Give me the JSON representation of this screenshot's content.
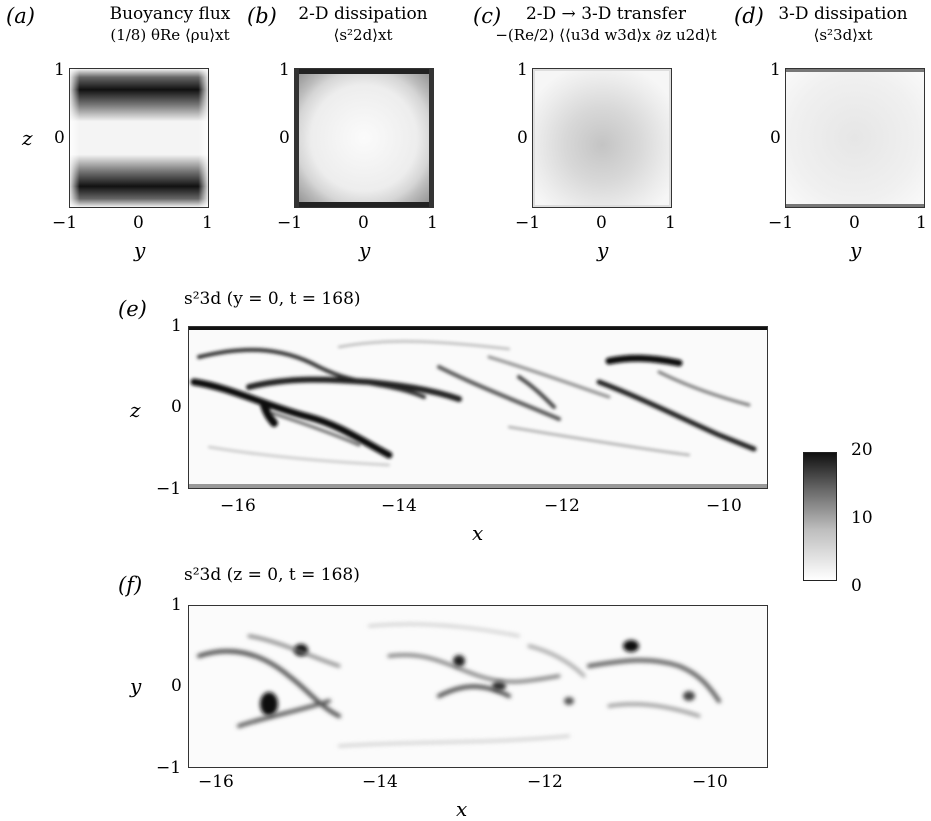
{
  "panels": [
    {
      "tag": "(a)",
      "title_line1": "Buoyancy flux",
      "title_line2": "(1/8) θRe ⟨ρu⟩xt",
      "ylabel": "z",
      "xlabel": "y",
      "xticks": [
        "−1",
        "0",
        "1"
      ],
      "yticks": [
        "1",
        "0"
      ]
    },
    {
      "tag": "(b)",
      "title_line1": "2-D dissipation",
      "title_line2": "⟨s²2d⟩xt",
      "xlabel": "y",
      "xticks": [
        "−1",
        "0",
        "1"
      ],
      "yticks": [
        "1",
        "0"
      ]
    },
    {
      "tag": "(c)",
      "title_line1": "2-D → 3-D transfer",
      "title_line2": "−(Re/2) ⟨⟨u3d w3d⟩x ∂z u2d⟩t",
      "xlabel": "y",
      "xticks": [
        "−1",
        "0",
        "1"
      ],
      "yticks": [
        "1",
        "0"
      ]
    },
    {
      "tag": "(d)",
      "title_line1": "3-D dissipation",
      "title_line2": "⟨s²3d⟩xt",
      "xlabel": "y",
      "xticks": [
        "−1",
        "0",
        "1"
      ],
      "yticks": [
        "1",
        "0"
      ]
    }
  ],
  "panel_e": {
    "tag": "(e)",
    "title": "s²3d (y = 0, t = 168)",
    "ylabel": "z",
    "xlabel": "x",
    "xticks": [
      "−16",
      "−14",
      "−12",
      "−10"
    ],
    "yticks": [
      "1",
      "0",
      "−1"
    ]
  },
  "panel_f": {
    "tag": "(f)",
    "title": "s²3d (z = 0, t = 168)",
    "ylabel": "y",
    "xlabel": "x",
    "xticks": [
      "−16",
      "−14",
      "−12",
      "−10"
    ],
    "yticks": [
      "1",
      "0",
      "−1"
    ]
  },
  "colorbar": {
    "ticks": [
      "20",
      "10",
      "0"
    ],
    "range": [
      0,
      20
    ],
    "colormap": "greyscale: white (0) to black (20)"
  },
  "colors": {
    "low": "#ffffff",
    "high": "#111111"
  }
}
